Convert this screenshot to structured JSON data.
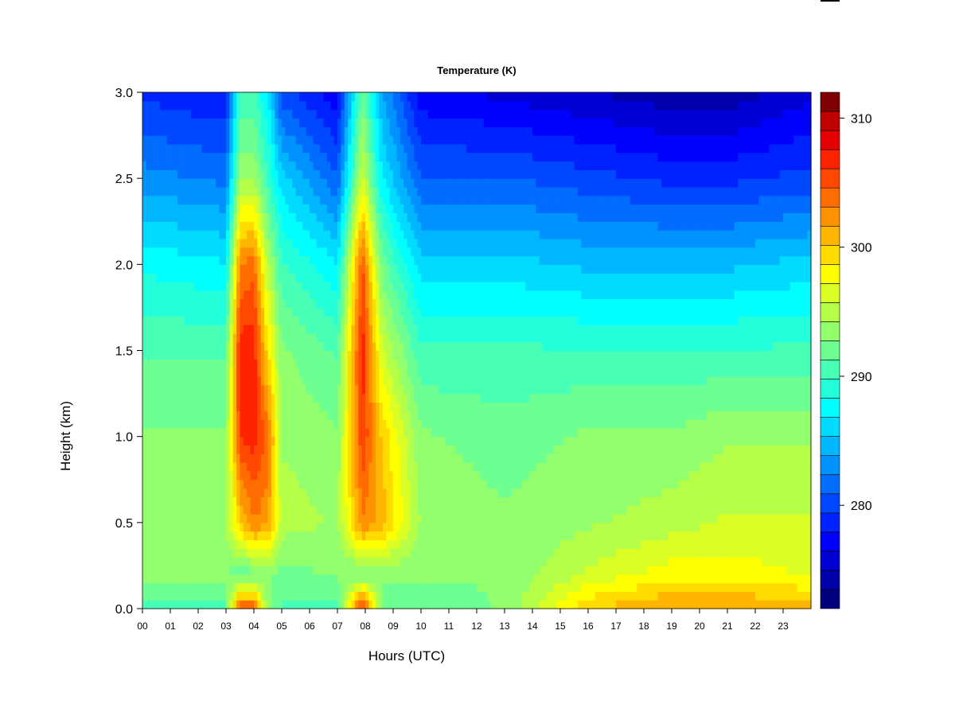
{
  "chart_data": {
    "type": "heatmap",
    "title": "Temperature (K)",
    "xlabel": "Hours (UTC)",
    "ylabel": "Height (km)",
    "xlim": [
      0,
      24
    ],
    "ylim": [
      0,
      3.0
    ],
    "x_ticks": [
      "00",
      "01",
      "02",
      "03",
      "04",
      "05",
      "06",
      "07",
      "08",
      "09",
      "10",
      "11",
      "12",
      "13",
      "14",
      "15",
      "16",
      "17",
      "18",
      "19",
      "20",
      "21",
      "22",
      "23"
    ],
    "y_ticks": [
      "0.0",
      "0.5",
      "1.0",
      "1.5",
      "2.0",
      "2.5",
      "3.0"
    ],
    "colorbar": {
      "min": 272,
      "max": 312,
      "step": 2,
      "ticks": [
        "280",
        "290",
        "300",
        "310"
      ],
      "colors": [
        "#00007F",
        "#0000AA",
        "#0000D4",
        "#0000FF",
        "#0022FF",
        "#0048FF",
        "#006DFF",
        "#0092FF",
        "#00B6FF",
        "#00DBFF",
        "#00FFFF",
        "#24FFDB",
        "#48FFB6",
        "#6DFF92",
        "#92FF6D",
        "#B6FF48",
        "#DBFF24",
        "#FFFF00",
        "#FFDB00",
        "#FFB600",
        "#FF9200",
        "#FF6D00",
        "#FF4800",
        "#FF2400",
        "#E40000",
        "#BF0000",
        "#7F0000"
      ]
    },
    "bands_km": [
      0,
      0.2,
      0.5,
      1.0,
      1.5,
      2.0,
      2.5,
      3.0
    ],
    "temperature_profiles_K": [
      {
        "hour": 0,
        "values": [
          291,
          293,
          294,
          293,
          291,
          288,
          283,
          279
        ]
      },
      {
        "hour": 3,
        "values": [
          291,
          293,
          294,
          293,
          291,
          287,
          282,
          278
        ]
      },
      {
        "hour": 3.5,
        "values": [
          305,
          291,
          300,
          306,
          307,
          303,
          294,
          290
        ]
      },
      {
        "hour": 4,
        "values": [
          305,
          292,
          303,
          307,
          307,
          304,
          294,
          290
        ]
      },
      {
        "hour": 4.5,
        "values": [
          293,
          293,
          302,
          304,
          299,
          295,
          290,
          287
        ]
      },
      {
        "hour": 5,
        "values": [
          291,
          292,
          295,
          294,
          293,
          290,
          286,
          280
        ]
      },
      {
        "hour": 7,
        "values": [
          291,
          293,
          294,
          293,
          291,
          287,
          281,
          277
        ]
      },
      {
        "hour": 7.9,
        "values": [
          307,
          292,
          303,
          306,
          307,
          305,
          296,
          292
        ]
      },
      {
        "hour": 8.6,
        "values": [
          292,
          293,
          301,
          300,
          296,
          292,
          287,
          284
        ]
      },
      {
        "hour": 10,
        "values": [
          291,
          293,
          294,
          293,
          290,
          286,
          281,
          277
        ]
      },
      {
        "hour": 13,
        "values": [
          293,
          293,
          293,
          292,
          290,
          286,
          281,
          276
        ]
      },
      {
        "hour": 16,
        "values": [
          300,
          296,
          294,
          293,
          290,
          285,
          280,
          275
        ]
      },
      {
        "hour": 19,
        "values": [
          302,
          298,
          295,
          293,
          290,
          285,
          279,
          274
        ]
      },
      {
        "hour": 21,
        "values": [
          302,
          298,
          296,
          294,
          290,
          285,
          279,
          274
        ]
      },
      {
        "hour": 24,
        "values": [
          301,
          297,
          296,
          294,
          290,
          286,
          280,
          276
        ]
      }
    ]
  }
}
